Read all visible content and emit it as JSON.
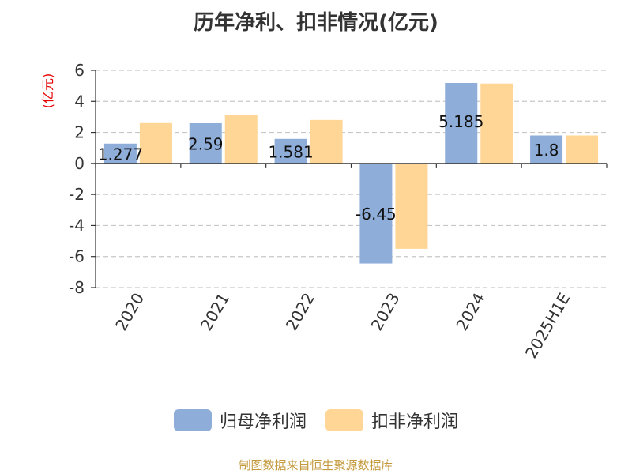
{
  "chart_data": {
    "type": "bar",
    "title": "历年净利、扣非情况(亿元)",
    "ylabel": "(亿元)",
    "categories": [
      "2020",
      "2021",
      "2022",
      "2023",
      "2024",
      "2025H1E"
    ],
    "series": [
      {
        "name": "归母净利润",
        "color": "#8eadd9",
        "values": [
          1.277,
          2.59,
          1.581,
          -6.45,
          5.185,
          1.8
        ],
        "labels": [
          "1.277",
          "2.59",
          "1.581",
          "-6.45",
          "5.185",
          "1.8"
        ]
      },
      {
        "name": "扣非净利润",
        "color": "#ffd696",
        "values": [
          2.6,
          3.1,
          2.8,
          -5.5,
          5.15,
          1.8
        ]
      }
    ],
    "ylim": [
      -8,
      6
    ],
    "yticks": [
      6,
      4,
      2,
      0,
      -2,
      -4,
      -6,
      -8
    ],
    "ytick_labels": [
      "6",
      "4",
      "2",
      "0",
      "-2",
      "-4",
      "-6",
      "-8"
    ],
    "grid": true,
    "legend_position": "bottom"
  },
  "colors": {
    "axis": "#333333",
    "grid": "#c8c8c8",
    "ylabel": "#e60000",
    "source": "#c49a3c"
  },
  "source": "制图数据来自恒生聚源数据库"
}
